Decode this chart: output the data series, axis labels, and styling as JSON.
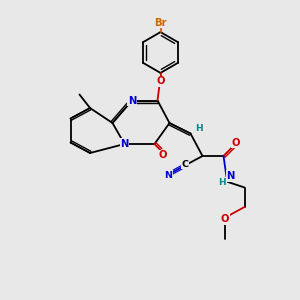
{
  "bg_color": "#e8e8e8",
  "colors": {
    "C": "#000000",
    "N": "#0000cc",
    "O": "#cc0000",
    "Br": "#cc6600",
    "H": "#008888"
  },
  "lw": 1.3,
  "lw2": 1.0,
  "doff": 0.055,
  "fs": 7.0
}
